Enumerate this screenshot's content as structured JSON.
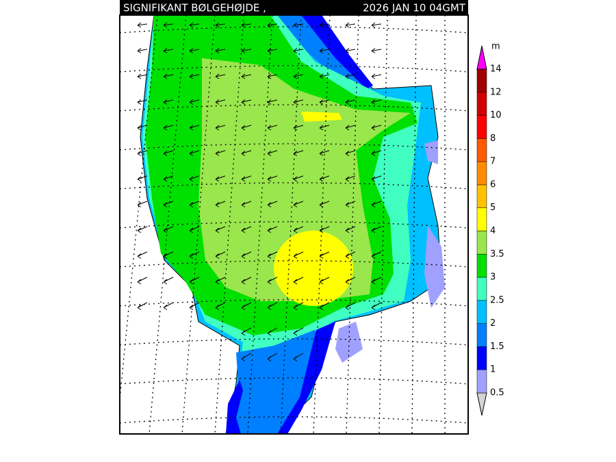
{
  "header": {
    "title": "SIGNIFIKANT BØLGEHØJDE ,",
    "timestamp": "2026 JAN 10 04GMT"
  },
  "legend": {
    "unit": "m",
    "levels": [
      0.5,
      1,
      1.5,
      2,
      2.5,
      3,
      3.5,
      4,
      5,
      6,
      7,
      8,
      10,
      12,
      14
    ],
    "colors": [
      "#d4d4d4",
      "#a0a0ff",
      "#0000ff",
      "#0080ff",
      "#00c0ff",
      "#40ffc0",
      "#00e000",
      "#99e64d",
      "#ffff00",
      "#ffc000",
      "#ff8c00",
      "#ff5a00",
      "#ff0000",
      "#d00000",
      "#a00000",
      "#ff00ff"
    ]
  }
}
